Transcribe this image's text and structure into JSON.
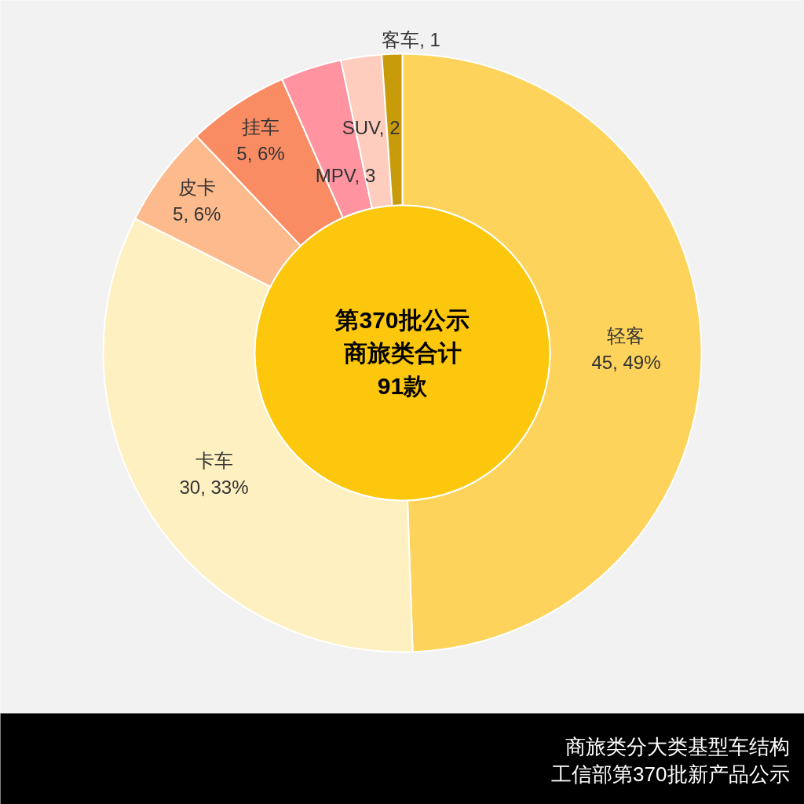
{
  "chart_data": {
    "type": "donut",
    "title": "商旅类分大类基型车结构",
    "subtitle": "工信部第370批新产品公示",
    "categories": [
      "轻客",
      "卡车",
      "皮卡",
      "挂车",
      "MPV",
      "SUV",
      "客车"
    ],
    "values": [
      45,
      30,
      5,
      5,
      3,
      2,
      1
    ],
    "colors": [
      "#fdd35b",
      "#fef0c0",
      "#fdba8c",
      "#fa8c64",
      "#ff94a0",
      "#ffcdbe",
      "#c89b0a"
    ],
    "value_labels": [
      "45, 49%",
      "30, 33%",
      "5, 6%",
      "5, 6%",
      "3",
      "2",
      "1"
    ],
    "annotations": [
      "第370批公示",
      "商旅类合计",
      "91款"
    ]
  }
}
